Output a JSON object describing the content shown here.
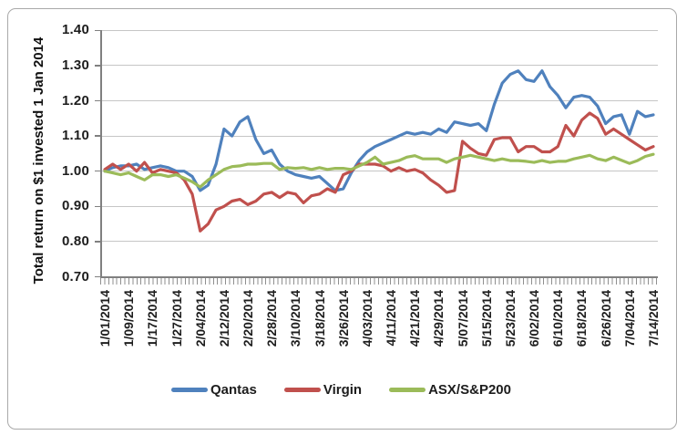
{
  "chart_data": {
    "type": "line",
    "title": "",
    "xlabel": "",
    "ylabel": "Total return on $1 invested 1 Jan 2014",
    "ylim": [
      0.7,
      1.4
    ],
    "ytick_step": 0.1,
    "ytick_labels": [
      "1.40",
      "1.30",
      "1.20",
      "1.10",
      "1.00",
      "0.90",
      "0.80",
      "0.70"
    ],
    "grid": "horizontal",
    "legend_position": "bottom",
    "x_tick_labels": [
      "1/01/2014",
      "1/09/2014",
      "1/17/2014",
      "1/27/2014",
      "2/04/2014",
      "2/12/2014",
      "2/20/2014",
      "2/28/2014",
      "3/10/2014",
      "3/18/2014",
      "3/26/2014",
      "4/03/2014",
      "4/11/2014",
      "4/21/2014",
      "4/29/2014",
      "5/07/2014",
      "5/15/2014",
      "5/23/2014",
      "6/02/2014",
      "6/10/2014",
      "6/18/2014",
      "6/26/2014",
      "7/04/2014",
      "7/14/2014"
    ],
    "points_per_label_interval": 3,
    "series": [
      {
        "name": "Qantas",
        "color": "#4F81BD",
        "values": [
          1.0,
          1.01,
          1.015,
          1.015,
          1.02,
          1.005,
          1.01,
          1.015,
          1.01,
          1.0,
          1.0,
          0.985,
          0.945,
          0.96,
          1.02,
          1.12,
          1.1,
          1.14,
          1.155,
          1.09,
          1.05,
          1.06,
          1.02,
          1.0,
          0.99,
          0.985,
          0.98,
          0.985,
          0.965,
          0.945,
          0.95,
          0.995,
          1.03,
          1.055,
          1.07,
          1.08,
          1.09,
          1.1,
          1.11,
          1.105,
          1.11,
          1.105,
          1.12,
          1.11,
          1.14,
          1.135,
          1.13,
          1.135,
          1.115,
          1.19,
          1.25,
          1.275,
          1.285,
          1.26,
          1.255,
          1.285,
          1.24,
          1.215,
          1.18,
          1.21,
          1.215,
          1.21,
          1.185,
          1.135,
          1.155,
          1.16,
          1.105,
          1.17,
          1.155,
          1.16
        ]
      },
      {
        "name": "Virgin",
        "color": "#C0504D",
        "values": [
          1.005,
          1.02,
          1.005,
          1.02,
          1.0,
          1.025,
          0.995,
          1.005,
          1.0,
          0.995,
          0.975,
          0.935,
          0.83,
          0.85,
          0.89,
          0.9,
          0.915,
          0.92,
          0.905,
          0.915,
          0.935,
          0.94,
          0.925,
          0.94,
          0.935,
          0.91,
          0.93,
          0.935,
          0.95,
          0.94,
          0.99,
          1.0,
          1.02,
          1.02,
          1.02,
          1.015,
          1.0,
          1.01,
          1.0,
          1.005,
          0.995,
          0.975,
          0.96,
          0.94,
          0.945,
          1.085,
          1.065,
          1.05,
          1.045,
          1.09,
          1.095,
          1.095,
          1.055,
          1.07,
          1.07,
          1.055,
          1.055,
          1.07,
          1.13,
          1.1,
          1.145,
          1.165,
          1.15,
          1.105,
          1.12,
          1.105,
          1.09,
          1.075,
          1.06,
          1.07
        ]
      },
      {
        "name": "ASX/S&P200",
        "color": "#9BBB59",
        "values": [
          1.0,
          0.995,
          0.99,
          0.995,
          0.985,
          0.975,
          0.99,
          0.99,
          0.985,
          0.99,
          0.98,
          0.97,
          0.955,
          0.975,
          0.99,
          1.005,
          1.013,
          1.015,
          1.02,
          1.02,
          1.022,
          1.022,
          1.005,
          1.01,
          1.008,
          1.01,
          1.005,
          1.01,
          1.005,
          1.008,
          1.008,
          1.005,
          1.015,
          1.025,
          1.04,
          1.02,
          1.025,
          1.03,
          1.04,
          1.044,
          1.035,
          1.035,
          1.035,
          1.025,
          1.035,
          1.04,
          1.045,
          1.04,
          1.035,
          1.03,
          1.035,
          1.03,
          1.03,
          1.028,
          1.025,
          1.03,
          1.025,
          1.028,
          1.028,
          1.035,
          1.04,
          1.045,
          1.035,
          1.03,
          1.04,
          1.031,
          1.022,
          1.03,
          1.042,
          1.048
        ]
      }
    ],
    "colors": {
      "gridline": "#c6c6c6",
      "axis": "#808080",
      "text": "#1d1d1d"
    }
  }
}
